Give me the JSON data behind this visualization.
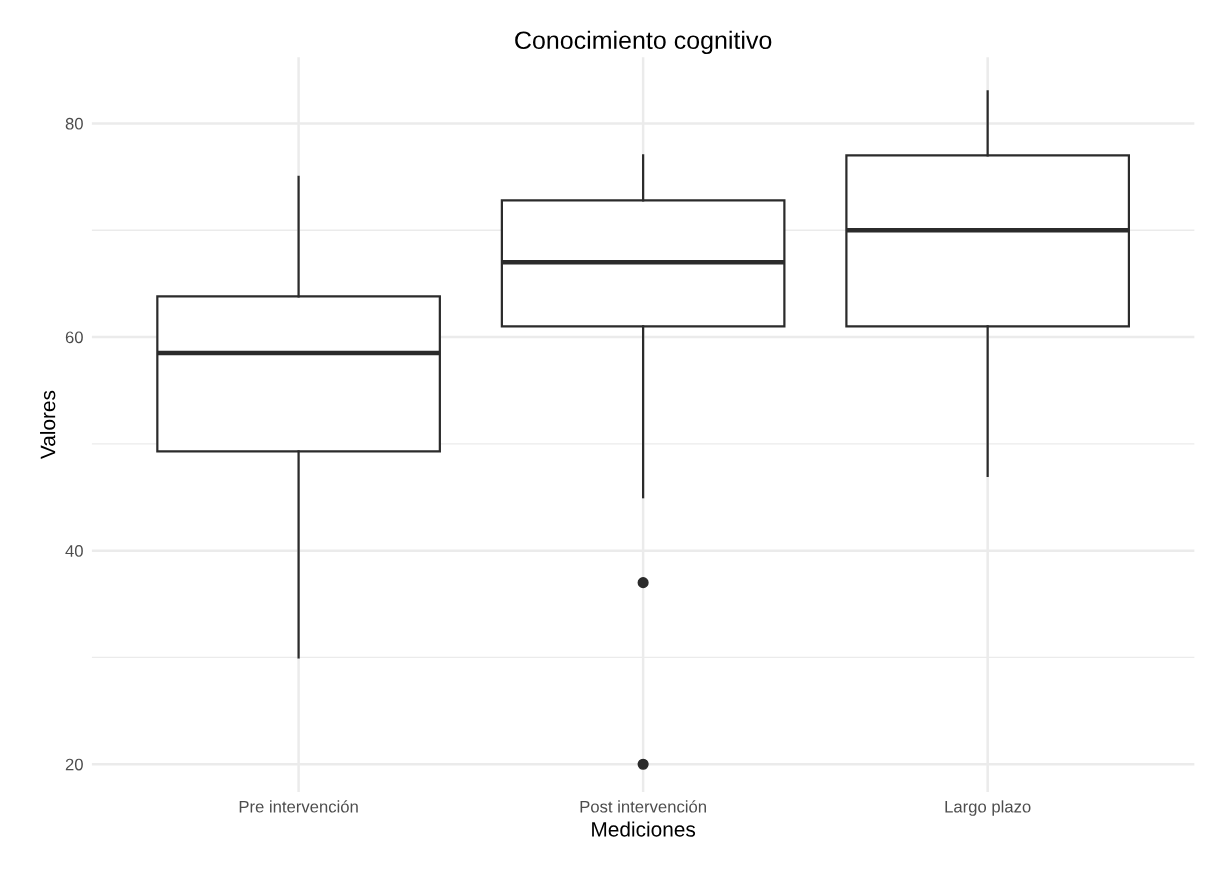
{
  "chart_data": {
    "type": "box",
    "title": "Conocimiento cognitivo",
    "xlabel": "Mediciones",
    "ylabel": "Valores",
    "categories": [
      "Pre intervención",
      "Post intervención",
      "Largo plazo"
    ],
    "boxes": [
      {
        "low": 30,
        "q1": 49.3,
        "median": 58.5,
        "q3": 63.8,
        "high": 75
      },
      {
        "low": 45,
        "q1": 61,
        "median": 67,
        "q3": 72.8,
        "high": 77,
        "outliers": [
          37,
          20
        ]
      },
      {
        "low": 47,
        "q1": 61,
        "median": 70,
        "q3": 77,
        "high": 83
      }
    ],
    "color": "#2b2b2b",
    "ylim": [
      17.4,
      86.2
    ],
    "yticks": [
      20,
      40,
      60,
      80
    ],
    "grid": true
  }
}
